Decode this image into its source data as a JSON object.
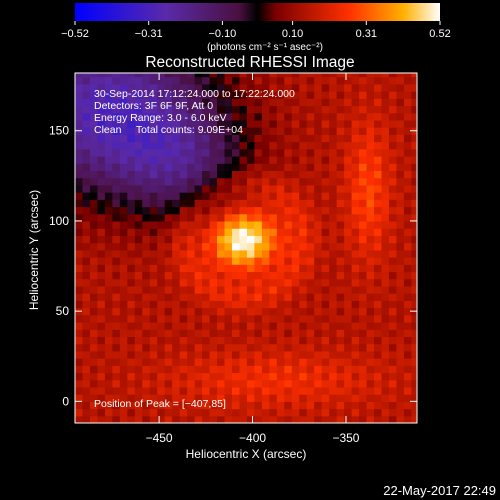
{
  "chart_data": {
    "type": "heatmap",
    "title": "Reconstructed RHESSI Image",
    "xlabel": "Heliocentric X (arcsec)",
    "ylabel": "Heliocentric Y (arcsec)",
    "xlim": [
      -495,
      -312
    ],
    "ylim": [
      -12,
      182
    ],
    "x_ticks": [
      {
        "value": -450,
        "label": "−450"
      },
      {
        "value": -400,
        "label": "−400"
      },
      {
        "value": -350,
        "label": "−350"
      }
    ],
    "y_ticks": [
      {
        "value": 0,
        "label": "0"
      },
      {
        "value": 50,
        "label": "50"
      },
      {
        "value": 100,
        "label": "100"
      },
      {
        "value": 150,
        "label": "150"
      }
    ],
    "colorbar": {
      "range": [
        -0.52,
        0.52
      ],
      "ticks": [
        {
          "value": -0.52,
          "label": "−0.52"
        },
        {
          "value": -0.31,
          "label": "−0.31"
        },
        {
          "value": -0.1,
          "label": "−0.10"
        },
        {
          "value": 0.1,
          "label": "0.10"
        },
        {
          "value": 0.31,
          "label": "0.31"
        },
        {
          "value": 0.52,
          "label": "0.52"
        }
      ],
      "unit_label": "(photons cm⁻² s⁻¹ asec⁻²)"
    },
    "annotations": [
      "30-Sep-2014 17:12:24.000 to 17:22:24.000",
      "Detectors: 3F 6F 9F, Att 0",
      "Energy Range: 3.0 - 6.0 keV",
      "Clean     Total counts: 9.09E+04",
      "Position of Peak = [−407,85]"
    ],
    "peak_position": [
      -407,
      85
    ],
    "sources": [
      {
        "x": -407,
        "y": 88,
        "peak": 0.52
      },
      {
        "x": -340,
        "y": 115,
        "peak": 0.3
      }
    ]
  },
  "timestamp": "22-May-2017 22:49"
}
